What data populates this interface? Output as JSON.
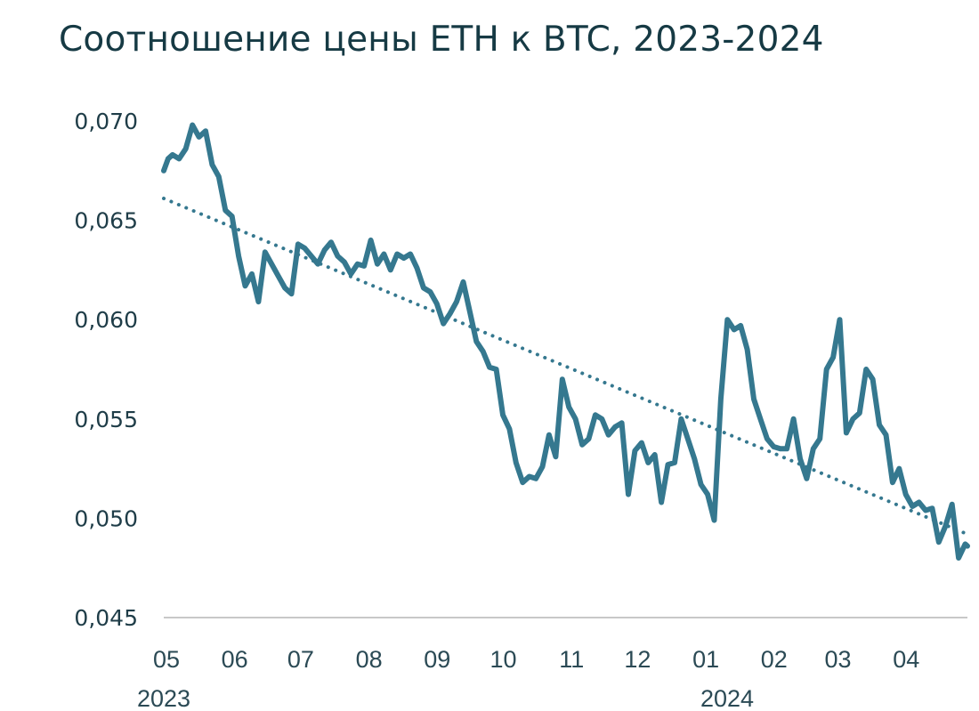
{
  "chart_data": {
    "type": "line",
    "title": "Соотношение цены ETH к BTC, 2023-2024",
    "xlabel": "",
    "ylabel": "",
    "ylim": [
      0.045,
      0.07
    ],
    "y_ticks": [
      "0,070",
      "0,065",
      "0,060",
      "0,055",
      "0,050",
      "0,045"
    ],
    "y_tick_values": [
      0.07,
      0.065,
      0.06,
      0.055,
      0.05,
      0.045
    ],
    "x_range": [
      "2023-05-01",
      "2024-04-30"
    ],
    "x_ticks": [
      "05",
      "06",
      "07",
      "08",
      "09",
      "10",
      "11",
      "12",
      "01",
      "02",
      "03",
      "04"
    ],
    "year_labels": [
      "2023",
      "2024"
    ],
    "grid": false,
    "legend": "none",
    "colors": {
      "line": "#35788f",
      "trend": "#35788f",
      "axis": "#c8c8c8",
      "title": "#163a44"
    },
    "series": [
      {
        "style": "solid",
        "x": [
          "2023-05-01",
          "2023-05-03",
          "2023-05-05",
          "2023-05-08",
          "2023-05-11",
          "2023-05-14",
          "2023-05-17",
          "2023-05-20",
          "2023-05-23",
          "2023-05-26",
          "2023-05-29",
          "2023-06-01",
          "2023-06-04",
          "2023-06-07",
          "2023-06-10",
          "2023-06-13",
          "2023-06-16",
          "2023-06-19",
          "2023-06-22",
          "2023-06-25",
          "2023-06-28",
          "2023-07-01",
          "2023-07-04",
          "2023-07-07",
          "2023-07-10",
          "2023-07-13",
          "2023-07-16",
          "2023-07-19",
          "2023-07-22",
          "2023-07-25",
          "2023-07-28",
          "2023-07-31",
          "2023-08-03",
          "2023-08-06",
          "2023-08-09",
          "2023-08-12",
          "2023-08-15",
          "2023-08-18",
          "2023-08-21",
          "2023-08-24",
          "2023-08-27",
          "2023-08-30",
          "2023-09-02",
          "2023-09-05",
          "2023-09-08",
          "2023-09-11",
          "2023-09-14",
          "2023-09-17",
          "2023-09-20",
          "2023-09-23",
          "2023-09-26",
          "2023-09-29",
          "2023-10-02",
          "2023-10-05",
          "2023-10-08",
          "2023-10-11",
          "2023-10-14",
          "2023-10-17",
          "2023-10-20",
          "2023-10-23",
          "2023-10-26",
          "2023-10-29",
          "2023-11-01",
          "2023-11-04",
          "2023-11-07",
          "2023-11-10",
          "2023-11-13",
          "2023-11-16",
          "2023-11-19",
          "2023-11-22",
          "2023-11-25",
          "2023-11-28",
          "2023-12-01",
          "2023-12-04",
          "2023-12-07",
          "2023-12-10",
          "2023-12-13",
          "2023-12-16",
          "2023-12-19",
          "2023-12-22",
          "2023-12-25",
          "2023-12-28",
          "2023-12-31",
          "2024-01-03",
          "2024-01-06",
          "2024-01-09",
          "2024-01-12",
          "2024-01-15",
          "2024-01-18",
          "2024-01-21",
          "2024-01-24",
          "2024-01-27",
          "2024-01-30",
          "2024-02-02",
          "2024-02-05",
          "2024-02-08",
          "2024-02-11",
          "2024-02-14",
          "2024-02-17",
          "2024-02-20",
          "2024-02-23",
          "2024-02-26",
          "2024-02-29",
          "2024-03-03",
          "2024-03-06",
          "2024-03-09",
          "2024-03-12",
          "2024-03-15",
          "2024-03-18",
          "2024-03-21",
          "2024-03-24",
          "2024-03-27",
          "2024-03-30",
          "2024-04-02",
          "2024-04-05",
          "2024-04-08",
          "2024-04-11",
          "2024-04-14",
          "2024-04-17",
          "2024-04-20",
          "2024-04-23",
          "2024-04-26",
          "2024-04-29",
          "2024-04-30"
        ],
        "values": [
          0.0675,
          0.0681,
          0.0683,
          0.0681,
          0.0686,
          0.0698,
          0.0692,
          0.0695,
          0.0678,
          0.0672,
          0.0655,
          0.0652,
          0.0632,
          0.0617,
          0.0623,
          0.0609,
          0.0634,
          0.0628,
          0.0622,
          0.0616,
          0.0613,
          0.0638,
          0.0636,
          0.0632,
          0.0628,
          0.0635,
          0.0639,
          0.0632,
          0.0629,
          0.0623,
          0.0628,
          0.0627,
          0.064,
          0.0628,
          0.0633,
          0.0625,
          0.0633,
          0.0631,
          0.0633,
          0.0626,
          0.0616,
          0.0614,
          0.0608,
          0.0598,
          0.0603,
          0.0609,
          0.0619,
          0.0604,
          0.0589,
          0.0584,
          0.0576,
          0.0575,
          0.0552,
          0.0545,
          0.0528,
          0.0518,
          0.0521,
          0.052,
          0.0526,
          0.0542,
          0.0531,
          0.057,
          0.0556,
          0.055,
          0.0537,
          0.054,
          0.0552,
          0.055,
          0.0542,
          0.0546,
          0.0548,
          0.0512,
          0.0534,
          0.0538,
          0.0528,
          0.0532,
          0.0508,
          0.0527,
          0.0528,
          0.055,
          0.054,
          0.053,
          0.0517,
          0.0512,
          0.0499,
          0.056,
          0.06,
          0.0595,
          0.0597,
          0.0585,
          0.056,
          0.055,
          0.054,
          0.0536,
          0.0535,
          0.0535,
          0.055,
          0.053,
          0.052,
          0.0535,
          0.054,
          0.0575,
          0.0581,
          0.06,
          0.0543,
          0.055,
          0.0553,
          0.0575,
          0.057,
          0.0547,
          0.0542,
          0.0518,
          0.0525,
          0.0512,
          0.0506,
          0.0508,
          0.0504,
          0.0505,
          0.0488,
          0.0496,
          0.0507,
          0.048,
          0.0487,
          0.0486
        ]
      },
      {
        "style": "dotted-trend",
        "x": [
          "2023-05-01",
          "2024-04-30"
        ],
        "values": [
          0.0661,
          0.0492
        ]
      }
    ]
  }
}
